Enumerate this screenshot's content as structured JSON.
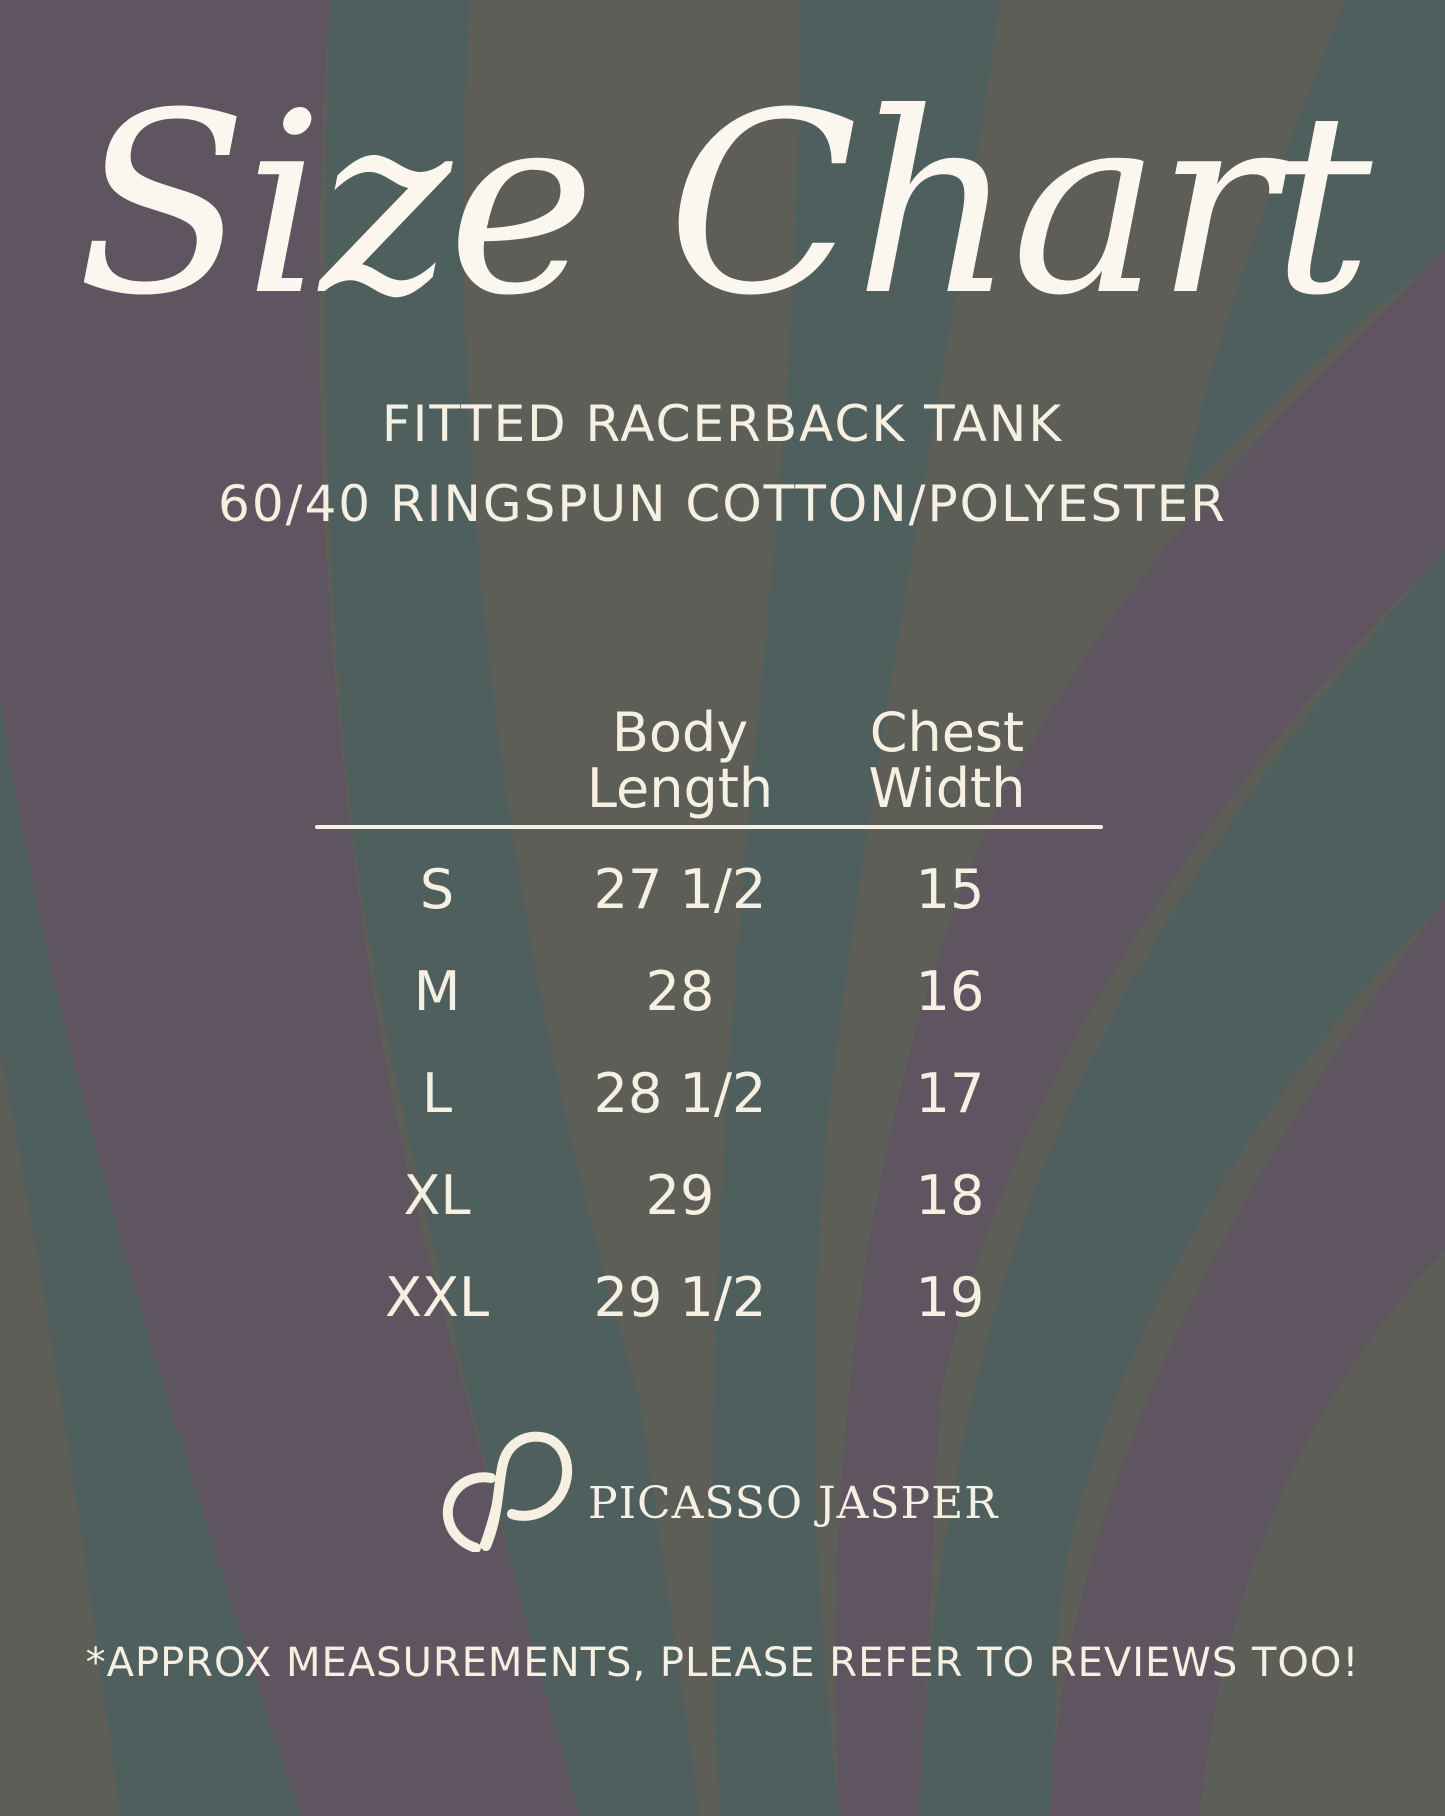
{
  "title": "Size Chart",
  "subtitle": [
    "FITTED RACERBACK TANK",
    "60/40 RINGSPUN COTTON/POLYESTER"
  ],
  "table": {
    "headers": [
      [
        "Body",
        "Length"
      ],
      [
        "Chest",
        "Width"
      ]
    ],
    "rows": [
      {
        "size": "S",
        "body_length": "27 1/2",
        "chest_width": "15"
      },
      {
        "size": "M",
        "body_length": "28",
        "chest_width": "16"
      },
      {
        "size": "L",
        "body_length": "28 1/2",
        "chest_width": "17"
      },
      {
        "size": "XL",
        "body_length": "29",
        "chest_width": "18"
      },
      {
        "size": "XXL",
        "body_length": "29 1/2",
        "chest_width": "19"
      }
    ]
  },
  "brand": {
    "name": "PICASSO JASPER",
    "icon": "pj-monogram-logo"
  },
  "footnote": "*APPROX MEASUREMENTS, PLEASE REFER TO REVIEWS TOO!",
  "colors": {
    "text": "#f6f0e2",
    "teal": "#4f5f5e",
    "plum": "#5f5560",
    "grey": "#5f5f5a"
  }
}
